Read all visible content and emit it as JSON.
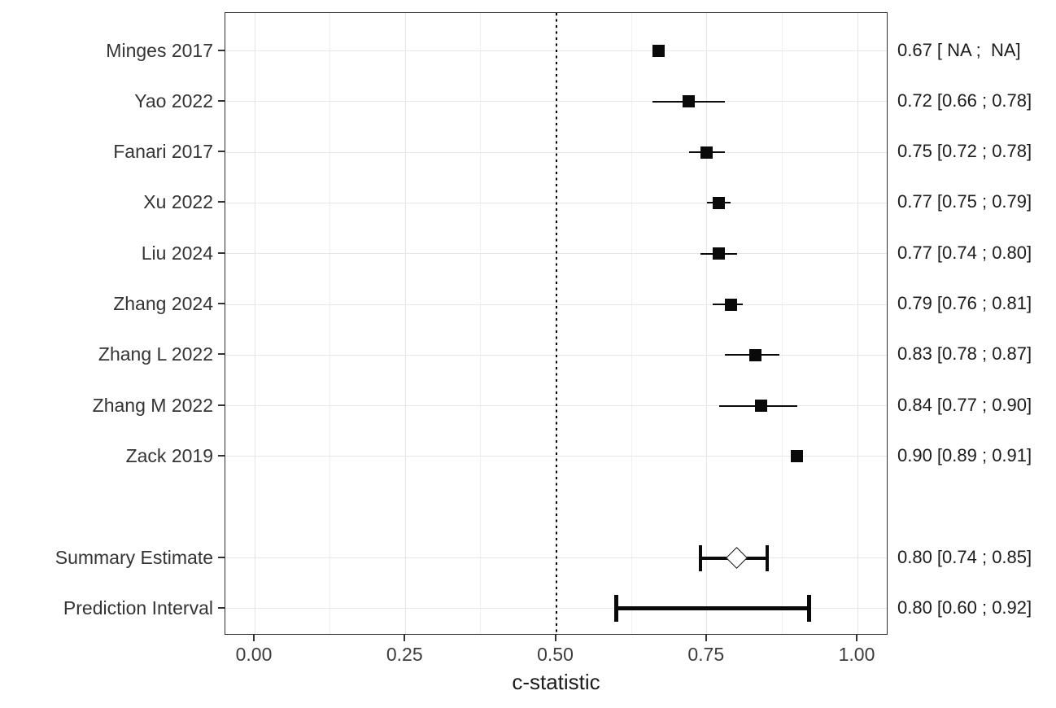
{
  "chart_data": {
    "type": "forest",
    "xlabel": "c-statistic",
    "x_ticks": [
      0.0,
      0.25,
      0.5,
      0.75,
      1.0
    ],
    "x_tick_labels": [
      "0.00",
      "0.25",
      "0.50",
      "0.75",
      "1.00"
    ],
    "x_minor_ticks": [
      0.125,
      0.375,
      0.625,
      0.875
    ],
    "xlim": [
      -0.049,
      1.051
    ],
    "reference_line": 0.5,
    "grid": true,
    "marker_color": "#0a0a0a",
    "studies": [
      {
        "label": "Minges 2017",
        "estimate": 0.67,
        "ci_lower": null,
        "ci_upper": null,
        "annotation": "0.67 [ NA ;  NA]"
      },
      {
        "label": "Yao 2022",
        "estimate": 0.72,
        "ci_lower": 0.66,
        "ci_upper": 0.78,
        "annotation": "0.72 [0.66 ; 0.78]"
      },
      {
        "label": "Fanari 2017",
        "estimate": 0.75,
        "ci_lower": 0.72,
        "ci_upper": 0.78,
        "annotation": "0.75 [0.72 ; 0.78]"
      },
      {
        "label": "Xu 2022",
        "estimate": 0.77,
        "ci_lower": 0.75,
        "ci_upper": 0.79,
        "annotation": "0.77 [0.75 ; 0.79]"
      },
      {
        "label": "Liu 2024",
        "estimate": 0.77,
        "ci_lower": 0.74,
        "ci_upper": 0.8,
        "annotation": "0.77 [0.74 ; 0.80]"
      },
      {
        "label": "Zhang 2024",
        "estimate": 0.79,
        "ci_lower": 0.76,
        "ci_upper": 0.81,
        "annotation": "0.79 [0.76 ; 0.81]"
      },
      {
        "label": "Zhang L 2022",
        "estimate": 0.83,
        "ci_lower": 0.78,
        "ci_upper": 0.87,
        "annotation": "0.83 [0.78 ; 0.87]"
      },
      {
        "label": "Zhang M 2022",
        "estimate": 0.84,
        "ci_lower": 0.77,
        "ci_upper": 0.9,
        "annotation": "0.84 [0.77 ; 0.90]"
      },
      {
        "label": "Zack 2019",
        "estimate": 0.9,
        "ci_lower": 0.89,
        "ci_upper": 0.91,
        "annotation": "0.90 [0.89 ; 0.91]"
      }
    ],
    "summary": {
      "label": "Summary Estimate",
      "estimate": 0.8,
      "ci_lower": 0.74,
      "ci_upper": 0.85,
      "annotation": "0.80 [0.74 ; 0.85]"
    },
    "prediction": {
      "label": "Prediction Interval",
      "estimate": 0.8,
      "ci_lower": 0.6,
      "ci_upper": 0.92,
      "annotation": "0.80 [0.60 ; 0.92]"
    }
  }
}
